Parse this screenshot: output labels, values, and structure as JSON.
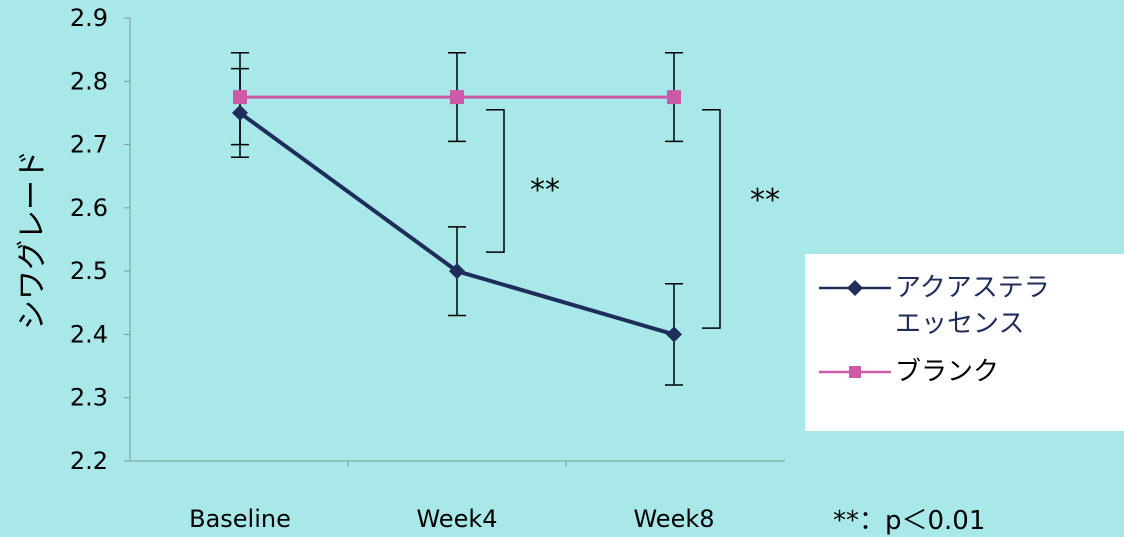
{
  "chart_data": {
    "type": "line",
    "categories": [
      "Baseline",
      "Week4",
      "Week8"
    ],
    "ylabel": "シワグレード",
    "ylim": [
      2.2,
      2.9
    ],
    "yticks": [
      "2.9",
      "2.8",
      "2.7",
      "2.6",
      "2.5",
      "2.4",
      "2.3",
      "2.2"
    ],
    "series": [
      {
        "name": "アクアステラ エッセンス",
        "legend_lines": [
          "アクアステラ",
          "エッセンス"
        ],
        "values": [
          2.75,
          2.5,
          2.4
        ],
        "err_low": [
          2.68,
          2.43,
          2.32
        ],
        "err_high": [
          2.82,
          2.57,
          2.48
        ],
        "color": "#1f2d5a",
        "marker": "diamond"
      },
      {
        "name": "ブランク",
        "values": [
          2.775,
          2.775,
          2.775
        ],
        "err_low": [
          2.7,
          2.705,
          2.705
        ],
        "err_high": [
          2.845,
          2.845,
          2.845
        ],
        "color": "#cc5aa7",
        "marker": "square"
      }
    ],
    "significance": [
      {
        "label": "**",
        "category": "Week4",
        "from": 2.53,
        "to": 2.755
      },
      {
        "label": "**",
        "category": "Week8",
        "from": 2.41,
        "to": 2.755
      }
    ],
    "footnote": "**：p＜0.01",
    "background": "#a8e8e8"
  }
}
